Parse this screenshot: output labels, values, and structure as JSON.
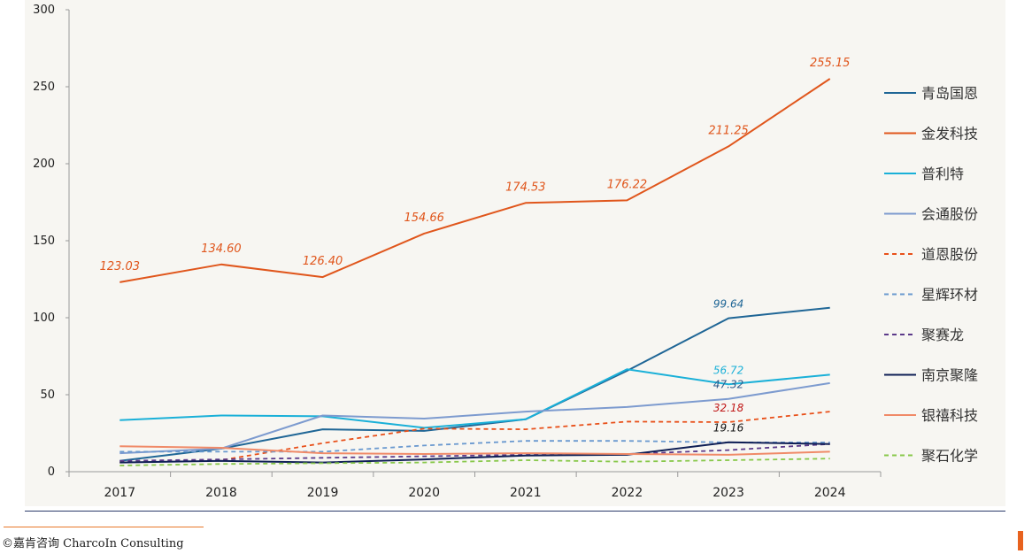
{
  "chart_data": {
    "type": "line",
    "categories": [
      "2017",
      "2018",
      "2019",
      "2020",
      "2021",
      "2022",
      "2023",
      "2024"
    ],
    "ylim": [
      0,
      300
    ],
    "yticks": [
      0,
      50,
      100,
      150,
      200,
      250,
      300
    ],
    "grid": false,
    "legend_position": "right",
    "series": [
      {
        "name": "青岛国恩",
        "color": "#1f6696",
        "dash": false,
        "values": [
          7,
          15,
          27.5,
          26.5,
          34,
          65.5,
          99.64,
          106.5
        ],
        "labels": [
          null,
          null,
          null,
          null,
          null,
          null,
          "99.64",
          null
        ]
      },
      {
        "name": "金发科技",
        "color": "#e0561c",
        "dash": false,
        "values": [
          123.03,
          134.6,
          126.4,
          154.66,
          174.53,
          176.22,
          211.25,
          255.15
        ],
        "labels": [
          "123.03",
          "134.60",
          "126.40",
          "154.66",
          "174.53",
          "176.22",
          "211.25",
          "255.15"
        ]
      },
      {
        "name": "普利特",
        "color": "#1ab0d8",
        "dash": false,
        "values": [
          33.5,
          36.5,
          36,
          28.5,
          34,
          66.5,
          56.72,
          63
        ],
        "labels": [
          null,
          null,
          null,
          null,
          null,
          null,
          "56.72",
          null
        ]
      },
      {
        "name": "会通股份",
        "color": "#7d9bcf",
        "dash": false,
        "values": [
          12,
          15,
          36.5,
          34.5,
          39,
          42,
          47.32,
          57.5
        ],
        "labels": [
          null,
          null,
          null,
          null,
          null,
          null,
          "47.32",
          null
        ]
      },
      {
        "name": "道恩股份",
        "color": "#e8501a",
        "dash": true,
        "values": [
          6,
          7.5,
          18.5,
          28,
          27.5,
          32.5,
          32.18,
          39
        ],
        "labels": [
          null,
          null,
          null,
          null,
          null,
          null,
          "32.18",
          null
        ]
      },
      {
        "name": "星辉环材",
        "color": "#6a99cf",
        "dash": true,
        "values": [
          13,
          13,
          13,
          17,
          20,
          20,
          19,
          19
        ],
        "labels": [
          null,
          null,
          null,
          null,
          null,
          null,
          null,
          null
        ]
      },
      {
        "name": "聚赛龙",
        "color": "#5c3a8a",
        "dash": true,
        "values": [
          7,
          8,
          9,
          10,
          11,
          11.5,
          14,
          18
        ],
        "labels": [
          null,
          null,
          null,
          null,
          null,
          null,
          null,
          null
        ]
      },
      {
        "name": "南京聚隆",
        "color": "#0f1f55",
        "dash": false,
        "values": [
          6,
          7,
          6,
          8,
          10.5,
          11,
          19.16,
          18
        ],
        "labels": [
          null,
          null,
          null,
          null,
          null,
          null,
          "19.16",
          null
        ]
      },
      {
        "name": "银禧科技",
        "color": "#f08a68",
        "dash": false,
        "values": [
          16.5,
          15.5,
          12,
          11.5,
          12,
          11.5,
          11,
          13
        ],
        "labels": [
          null,
          null,
          null,
          null,
          null,
          null,
          null,
          null
        ]
      },
      {
        "name": "聚石化学",
        "color": "#88c84a",
        "dash": true,
        "values": [
          4,
          5,
          5.5,
          6,
          7.5,
          6.5,
          7.5,
          8.5
        ],
        "labels": [
          null,
          null,
          null,
          null,
          null,
          null,
          null,
          null
        ]
      }
    ],
    "label_colors": {
      "99.64": "#1f6696",
      "56.72": "#1ab0d8",
      "47.32": "#2e5a8a",
      "32.18": "#c01818",
      "19.16": "#111111"
    }
  },
  "footer": {
    "copyright": "©嘉肯咨询  CharcoIn Consulting"
  }
}
